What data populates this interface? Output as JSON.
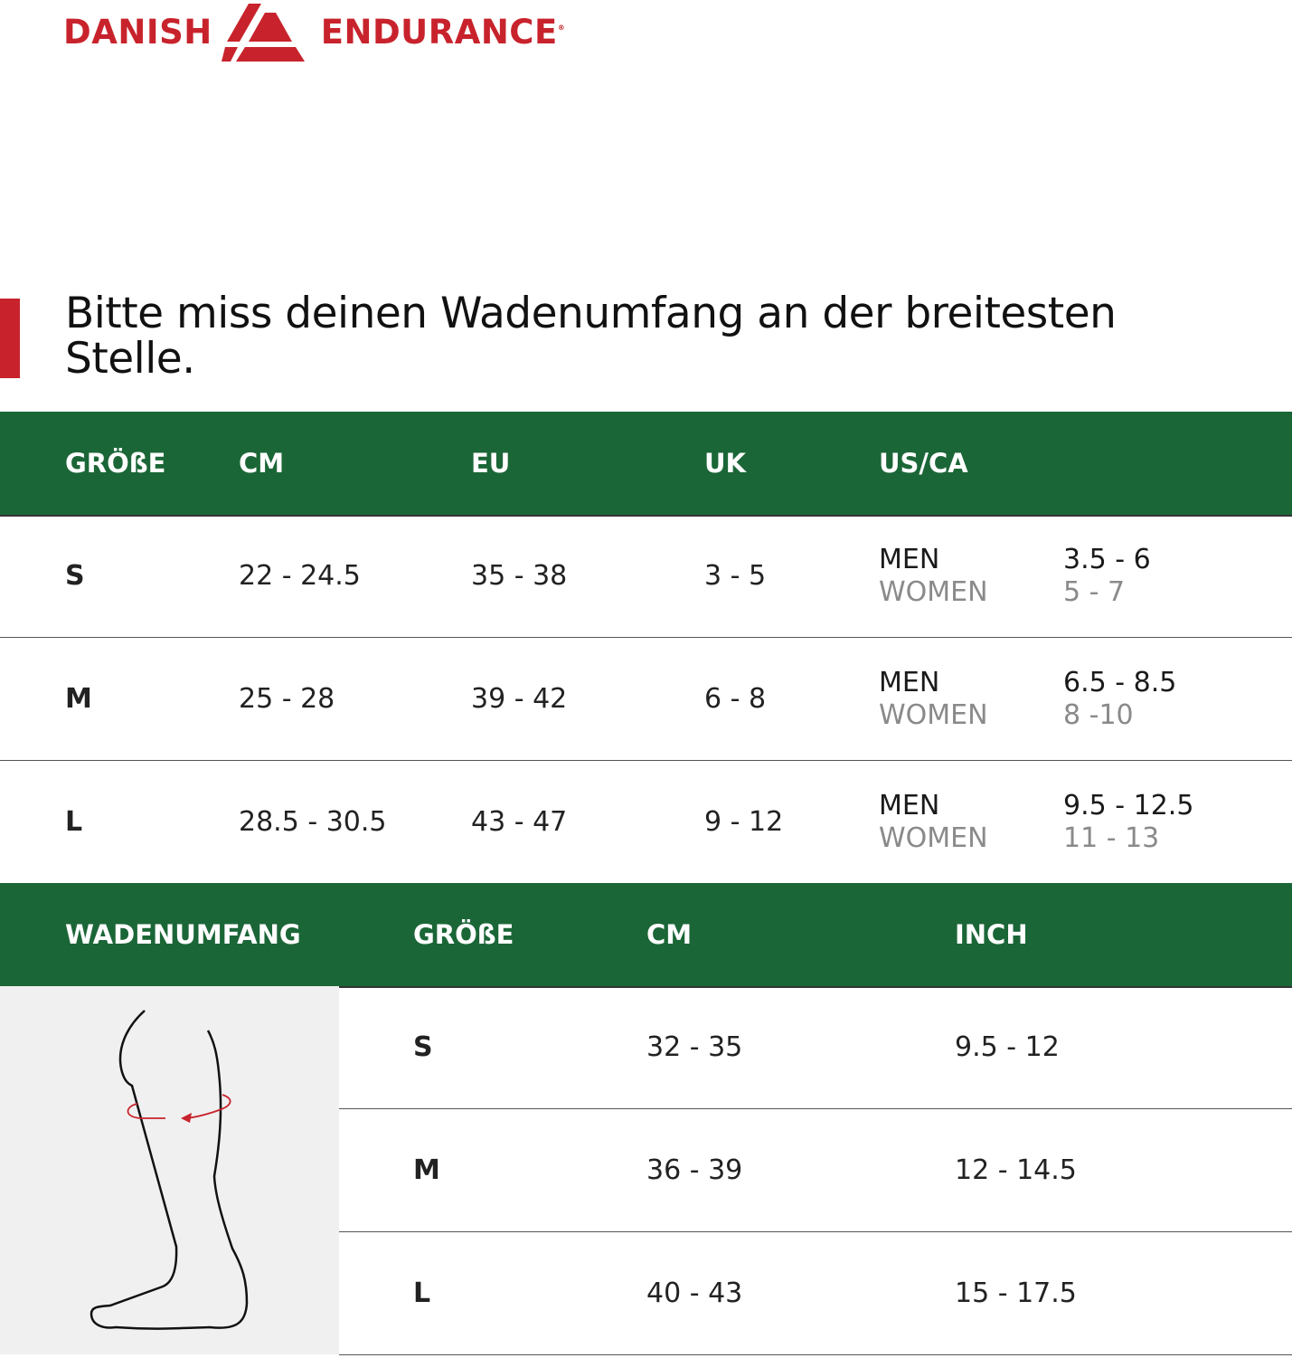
{
  "brand": {
    "left": "DANISH",
    "right": "ENDURANCE",
    "color": "#c8232c"
  },
  "headline": "Bitte miss deinen Wadenumfang an der breitesten Stelle.",
  "colors": {
    "header_green": "#1b6637",
    "panel_grey": "#f0f0f0"
  },
  "table1": {
    "headers": [
      "GRÖßE",
      "CM",
      "EU",
      "UK",
      "US/CA"
    ],
    "rows": [
      {
        "size": "S",
        "cm": "22 - 24.5",
        "eu": "35 - 38",
        "uk": "3 - 5",
        "men_label": "MEN",
        "women_label": "WOMEN",
        "men": "3.5 - 6",
        "women": "5 - 7"
      },
      {
        "size": "M",
        "cm": "25 - 28",
        "eu": "39 - 42",
        "uk": "6 - 8",
        "men_label": "MEN",
        "women_label": "WOMEN",
        "men": "6.5 - 8.5",
        "women": "8 -10"
      },
      {
        "size": "L",
        "cm": "28.5 - 30.5",
        "eu": "43 - 47",
        "uk": "9 - 12",
        "men_label": "MEN",
        "women_label": "WOMEN",
        "men": "9.5 - 12.5",
        "women": "11 - 13"
      }
    ]
  },
  "table2": {
    "headers": [
      "WADENUMFANG",
      "GRÖßE",
      "CM",
      "INCH"
    ],
    "rows": [
      {
        "size": "S",
        "cm": "32 - 35",
        "inch": "9.5 - 12"
      },
      {
        "size": "M",
        "cm": "36 - 39",
        "inch": "12 - 14.5"
      },
      {
        "size": "L",
        "cm": "40 - 43",
        "inch": "15 - 17.5"
      }
    ]
  }
}
